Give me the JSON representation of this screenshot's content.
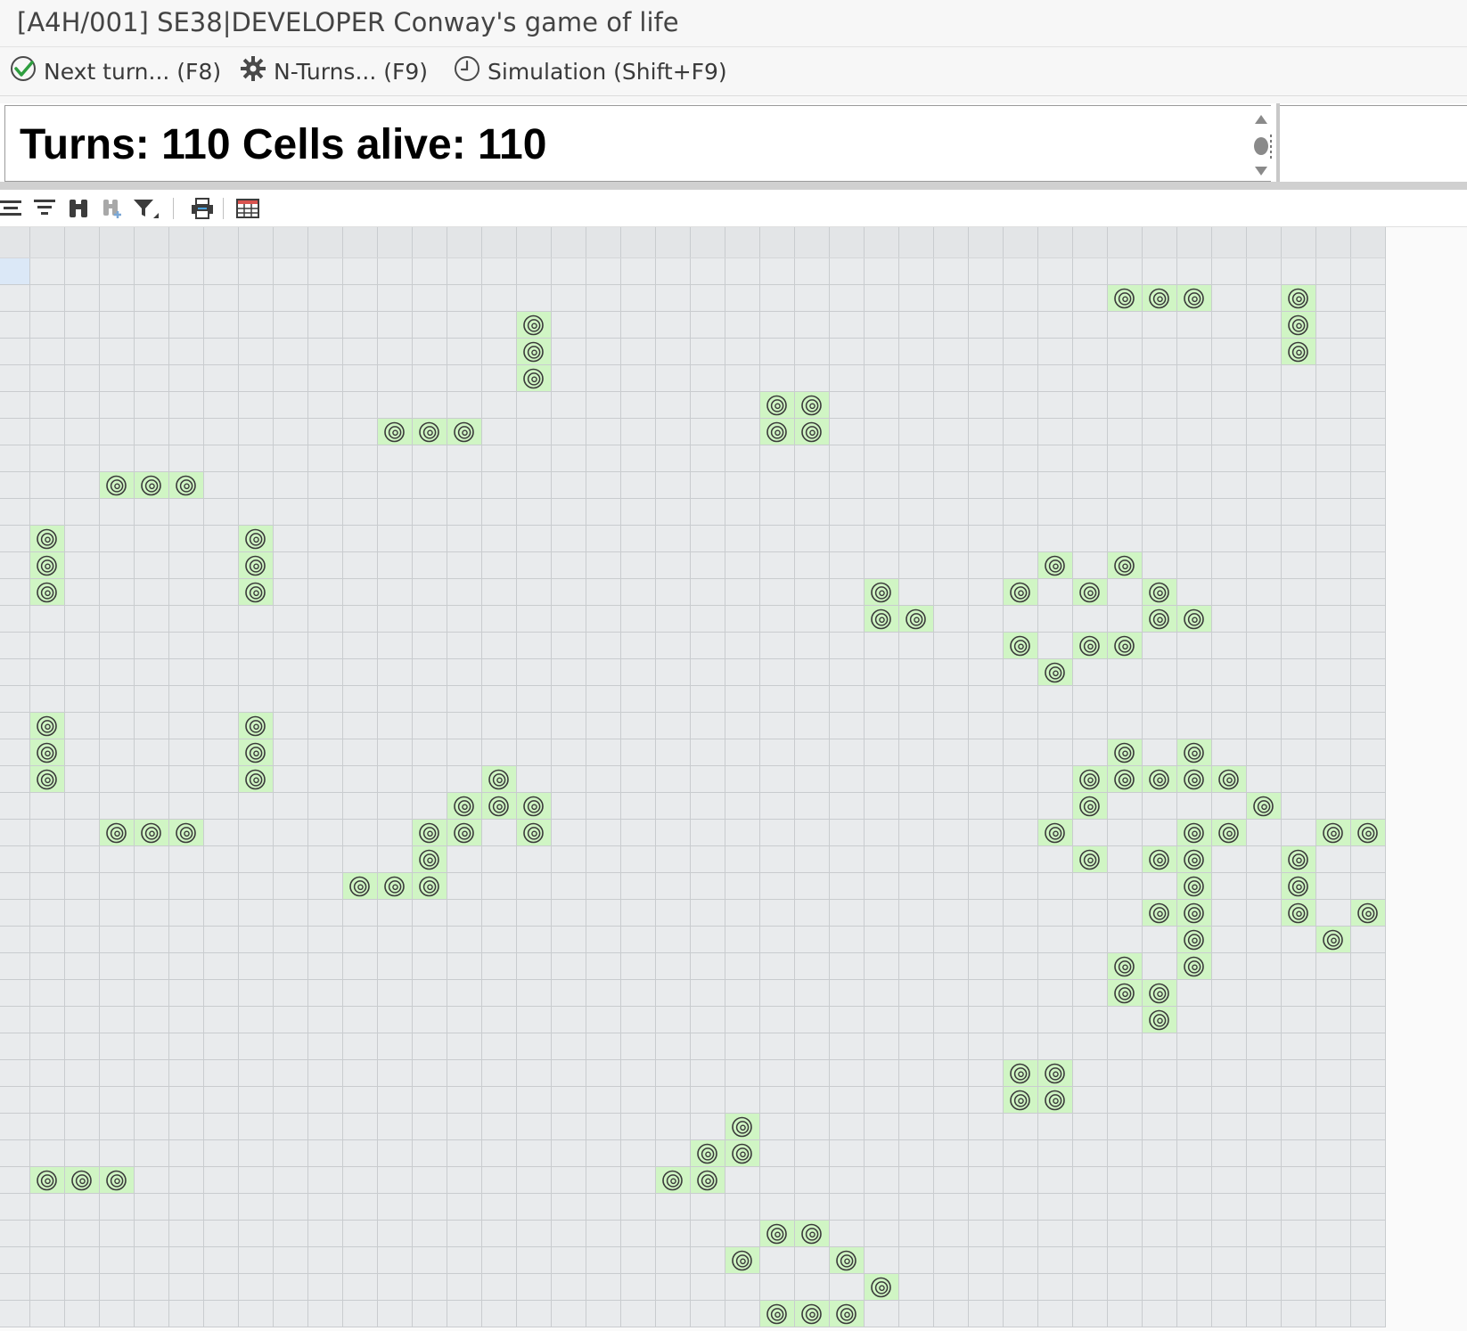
{
  "window": {
    "title": "[A4H/001] SE38|DEVELOPER Conway's game of life"
  },
  "toolbar": {
    "buttons": [
      {
        "label": "Next turn... (F8)",
        "icon": "check-circle-icon"
      },
      {
        "label": "N-Turns... (F9)",
        "icon": "gear-icon"
      },
      {
        "label": "Simulation (Shift+F9)",
        "icon": "clock-icon"
      }
    ]
  },
  "header": {
    "text": "Turns: 110 Cells alive: 110"
  },
  "alv_toolbar": {
    "icons": [
      "align-icon",
      "sort-icon",
      "find-icon",
      "find-next-icon",
      "filter-icon",
      "print-icon",
      "layout-icon"
    ]
  },
  "grid": {
    "columns": 39,
    "rows": 40,
    "alive_icon": "spiral-icon",
    "colors": {
      "cell_bg": "#e9ebed",
      "header_bg": "#e3e5e7",
      "alive_bg": "#d0f5c4",
      "selected_bg": "#dbe8f7",
      "grid_line": "#c9cccf"
    },
    "alive_cells": [
      [
        32,
        1
      ],
      [
        33,
        1
      ],
      [
        34,
        1
      ],
      [
        37,
        1
      ],
      [
        15,
        2
      ],
      [
        37,
        2
      ],
      [
        15,
        3
      ],
      [
        37,
        3
      ],
      [
        15,
        4
      ],
      [
        22,
        5
      ],
      [
        23,
        5
      ],
      [
        11,
        6
      ],
      [
        12,
        6
      ],
      [
        13,
        6
      ],
      [
        22,
        6
      ],
      [
        23,
        6
      ],
      [
        3,
        8
      ],
      [
        4,
        8
      ],
      [
        5,
        8
      ],
      [
        1,
        10
      ],
      [
        7,
        10
      ],
      [
        1,
        11
      ],
      [
        7,
        11
      ],
      [
        30,
        11
      ],
      [
        32,
        11
      ],
      [
        1,
        12
      ],
      [
        7,
        12
      ],
      [
        25,
        12
      ],
      [
        29,
        12
      ],
      [
        31,
        12
      ],
      [
        33,
        12
      ],
      [
        25,
        13
      ],
      [
        26,
        13
      ],
      [
        33,
        13
      ],
      [
        34,
        13
      ],
      [
        29,
        14
      ],
      [
        31,
        14
      ],
      [
        32,
        14
      ],
      [
        30,
        15
      ],
      [
        1,
        17
      ],
      [
        7,
        17
      ],
      [
        1,
        18
      ],
      [
        7,
        18
      ],
      [
        32,
        18
      ],
      [
        34,
        18
      ],
      [
        1,
        19
      ],
      [
        7,
        19
      ],
      [
        14,
        19
      ],
      [
        31,
        19
      ],
      [
        32,
        19
      ],
      [
        33,
        19
      ],
      [
        34,
        19
      ],
      [
        35,
        19
      ],
      [
        13,
        20
      ],
      [
        14,
        20
      ],
      [
        15,
        20
      ],
      [
        31,
        20
      ],
      [
        36,
        20
      ],
      [
        3,
        21
      ],
      [
        4,
        21
      ],
      [
        5,
        21
      ],
      [
        12,
        21
      ],
      [
        13,
        21
      ],
      [
        15,
        21
      ],
      [
        30,
        21
      ],
      [
        34,
        21
      ],
      [
        35,
        21
      ],
      [
        38,
        21
      ],
      [
        39,
        21
      ],
      [
        12,
        22
      ],
      [
        31,
        22
      ],
      [
        33,
        22
      ],
      [
        34,
        22
      ],
      [
        37,
        22
      ],
      [
        10,
        23
      ],
      [
        11,
        23
      ],
      [
        12,
        23
      ],
      [
        34,
        23
      ],
      [
        37,
        23
      ],
      [
        33,
        24
      ],
      [
        34,
        24
      ],
      [
        37,
        24
      ],
      [
        39,
        24
      ],
      [
        34,
        25
      ],
      [
        38,
        25
      ],
      [
        32,
        26
      ],
      [
        34,
        26
      ],
      [
        32,
        27
      ],
      [
        33,
        27
      ],
      [
        33,
        28
      ],
      [
        29,
        30
      ],
      [
        30,
        30
      ],
      [
        29,
        31
      ],
      [
        30,
        31
      ],
      [
        21,
        32
      ],
      [
        20,
        33
      ],
      [
        21,
        33
      ],
      [
        1,
        34
      ],
      [
        2,
        34
      ],
      [
        3,
        34
      ],
      [
        19,
        34
      ],
      [
        20,
        34
      ],
      [
        22,
        36
      ],
      [
        23,
        36
      ],
      [
        21,
        37
      ],
      [
        24,
        37
      ],
      [
        25,
        38
      ],
      [
        22,
        39
      ],
      [
        23,
        39
      ],
      [
        24,
        39
      ]
    ]
  }
}
